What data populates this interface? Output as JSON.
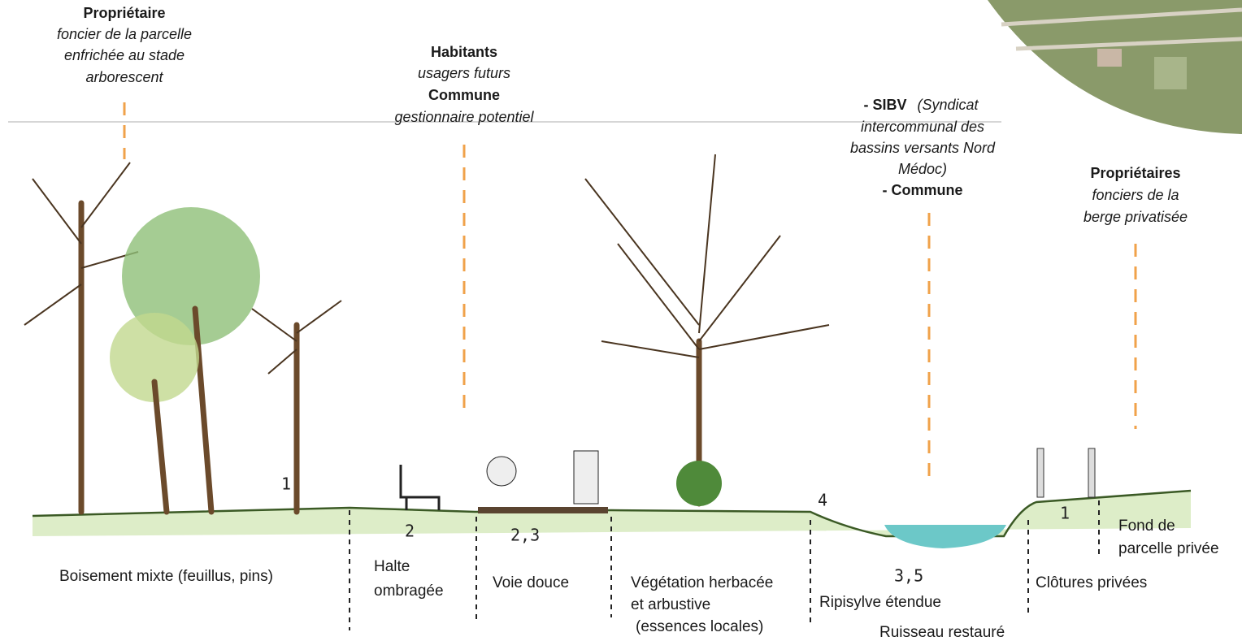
{
  "stakeholders": [
    {
      "lines": [
        "Propriétaire",
        "foncier de la parcelle",
        "enfrichée au stade",
        "arborescent"
      ]
    },
    {
      "lines": [
        "Habitants",
        "usagers futurs",
        "Commune",
        "gestionnaire potentiel"
      ]
    },
    {
      "lines": [
        "- SIBV",
        "(Syndicat",
        "intercommunal des",
        "bassins versants Nord",
        "Médoc)",
        "- Commune"
      ]
    },
    {
      "lines": [
        "Propriétaires",
        "fonciers de la",
        "berge privatisée"
      ]
    }
  ],
  "sketch_numbers": [
    "1",
    "2",
    "2,3",
    "4",
    "3,5",
    "1"
  ],
  "zones": [
    {
      "lines": [
        "Boisement mixte (feuillus, pins)"
      ]
    },
    {
      "lines": [
        "Halte",
        "ombragée"
      ]
    },
    {
      "lines": [
        "Voie douce"
      ]
    },
    {
      "lines": [
        "Végétation herbacée",
        "et arbustive",
        "(essences locales)"
      ]
    },
    {
      "lines": [
        "Ripisylve étendue"
      ]
    },
    {
      "lines": [
        "Ruisseau restauré"
      ]
    },
    {
      "lines": [
        "Clôtures privées"
      ]
    },
    {
      "lines": [
        "Fond de",
        "parcelle privée"
      ]
    }
  ]
}
